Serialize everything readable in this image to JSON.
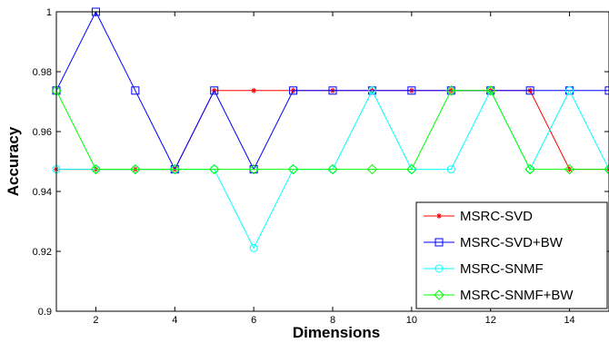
{
  "chart_data": {
    "type": "line",
    "xlabel": "Dimensions",
    "ylabel": "Accuracy",
    "xlim": [
      1,
      15
    ],
    "ylim": [
      0.9,
      1
    ],
    "xticks": [
      2,
      4,
      6,
      8,
      10,
      12,
      14
    ],
    "yticks": [
      0.9,
      0.92,
      0.94,
      0.96,
      0.98,
      1
    ],
    "ytick_labels": [
      "0.9",
      "0.92",
      "0.94",
      "0.96",
      "0.98",
      "1"
    ],
    "grid": false,
    "legend_position": "lower-right",
    "x": [
      1,
      2,
      3,
      4,
      5,
      6,
      7,
      8,
      9,
      10,
      11,
      12,
      13,
      14,
      15
    ],
    "series": [
      {
        "name": "MSRC-SVD",
        "color": "#ff0000",
        "marker": "star",
        "values": [
          0.9474,
          0.9474,
          0.9474,
          0.9474,
          0.9737,
          0.9737,
          0.9737,
          0.9737,
          0.9737,
          0.9737,
          0.9737,
          0.9737,
          0.9737,
          0.9474,
          0.9474
        ]
      },
      {
        "name": "MSRC-SVD+BW",
        "color": "#0000ff",
        "marker": "square",
        "values": [
          0.9737,
          1.0,
          0.9737,
          0.9474,
          0.9737,
          0.9474,
          0.9737,
          0.9737,
          0.9737,
          0.9737,
          0.9737,
          0.9737,
          0.9737,
          0.9737,
          0.9737
        ]
      },
      {
        "name": "MSRC-SNMF",
        "color": "#00ffff",
        "marker": "circle",
        "values": [
          0.9474,
          0.9474,
          0.9474,
          0.9474,
          0.9474,
          0.9211,
          0.9474,
          0.9474,
          0.9737,
          0.9474,
          0.9474,
          0.9737,
          0.9474,
          0.9737,
          0.9474
        ]
      },
      {
        "name": "MSRC-SNMF+BW",
        "color": "#00ff00",
        "marker": "diamond",
        "values": [
          0.9737,
          0.9474,
          0.9474,
          0.9474,
          0.9474,
          0.9474,
          0.9474,
          0.9474,
          0.9474,
          0.9474,
          0.9737,
          0.9737,
          0.9474,
          0.9474,
          0.9474
        ]
      }
    ]
  }
}
